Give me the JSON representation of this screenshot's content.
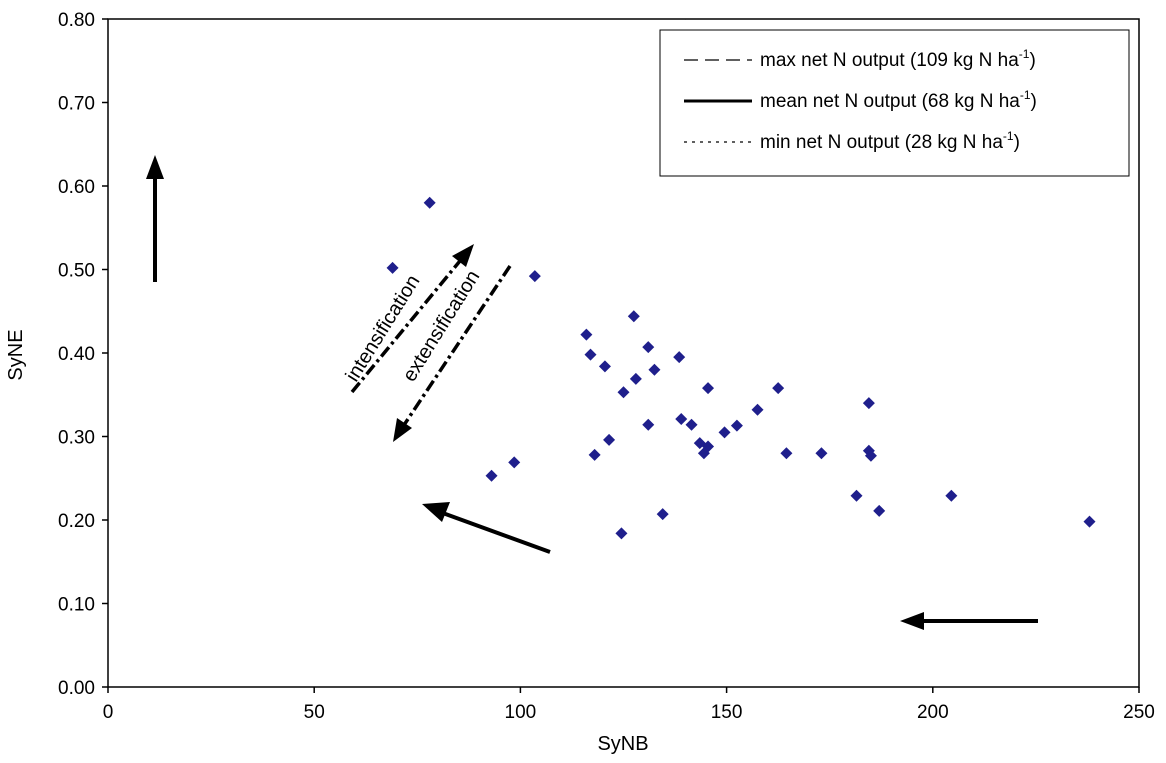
{
  "chart_data": {
    "type": "scatter",
    "xlabel": "SyNB",
    "ylabel": "SyNE",
    "xlim": [
      0,
      250
    ],
    "ylim": [
      0.0,
      0.8
    ],
    "x_ticks": [
      "0",
      "50",
      "100",
      "150",
      "200",
      "250"
    ],
    "y_ticks": [
      "0.00",
      "0.10",
      "0.20",
      "0.30",
      "0.40",
      "0.50",
      "0.60",
      "0.70",
      "0.80"
    ],
    "grid": false,
    "legend_placement": "top-right",
    "curves": [
      {
        "name_main": "max net N output (109 kg N ha",
        "name_sup": "-1",
        "name_end": ")",
        "output": 109,
        "style": "dashed"
      },
      {
        "name_main": "mean net N output (68 kg N ha",
        "name_sup": "-1",
        "name_end": ")",
        "output": 68,
        "style": "solid"
      },
      {
        "name_main": "min net N output (28 kg N ha",
        "name_sup": "-1",
        "name_end": ")",
        "output": 28,
        "style": "dotted"
      }
    ],
    "points": [
      {
        "x": 69,
        "y": 0.502
      },
      {
        "x": 78,
        "y": 0.58
      },
      {
        "x": 93,
        "y": 0.253
      },
      {
        "x": 98.5,
        "y": 0.269
      },
      {
        "x": 103.5,
        "y": 0.492
      },
      {
        "x": 116,
        "y": 0.422
      },
      {
        "x": 117,
        "y": 0.398
      },
      {
        "x": 118,
        "y": 0.278
      },
      {
        "x": 120.5,
        "y": 0.384
      },
      {
        "x": 121.5,
        "y": 0.296
      },
      {
        "x": 124.5,
        "y": 0.184
      },
      {
        "x": 125,
        "y": 0.353
      },
      {
        "x": 127.5,
        "y": 0.444
      },
      {
        "x": 128,
        "y": 0.369
      },
      {
        "x": 131,
        "y": 0.407
      },
      {
        "x": 131,
        "y": 0.314
      },
      {
        "x": 132.5,
        "y": 0.38
      },
      {
        "x": 134.5,
        "y": 0.207
      },
      {
        "x": 138.5,
        "y": 0.395
      },
      {
        "x": 139,
        "y": 0.321
      },
      {
        "x": 141.5,
        "y": 0.314
      },
      {
        "x": 143.5,
        "y": 0.292
      },
      {
        "x": 144.5,
        "y": 0.28
      },
      {
        "x": 145.5,
        "y": 0.288
      },
      {
        "x": 145.5,
        "y": 0.358
      },
      {
        "x": 149.5,
        "y": 0.305
      },
      {
        "x": 152.5,
        "y": 0.313
      },
      {
        "x": 157.5,
        "y": 0.332
      },
      {
        "x": 162.5,
        "y": 0.358
      },
      {
        "x": 164.5,
        "y": 0.28
      },
      {
        "x": 173,
        "y": 0.28
      },
      {
        "x": 181.5,
        "y": 0.229
      },
      {
        "x": 184.5,
        "y": 0.34
      },
      {
        "x": 184.5,
        "y": 0.283
      },
      {
        "x": 185,
        "y": 0.277
      },
      {
        "x": 187,
        "y": 0.211
      },
      {
        "x": 204.5,
        "y": 0.229
      },
      {
        "x": 238,
        "y": 0.198
      }
    ],
    "annotations": [
      "intensification",
      "extensification"
    ],
    "colors": {
      "points": "#1f1f8c",
      "lines": "#000000",
      "axes": "#000000"
    }
  }
}
